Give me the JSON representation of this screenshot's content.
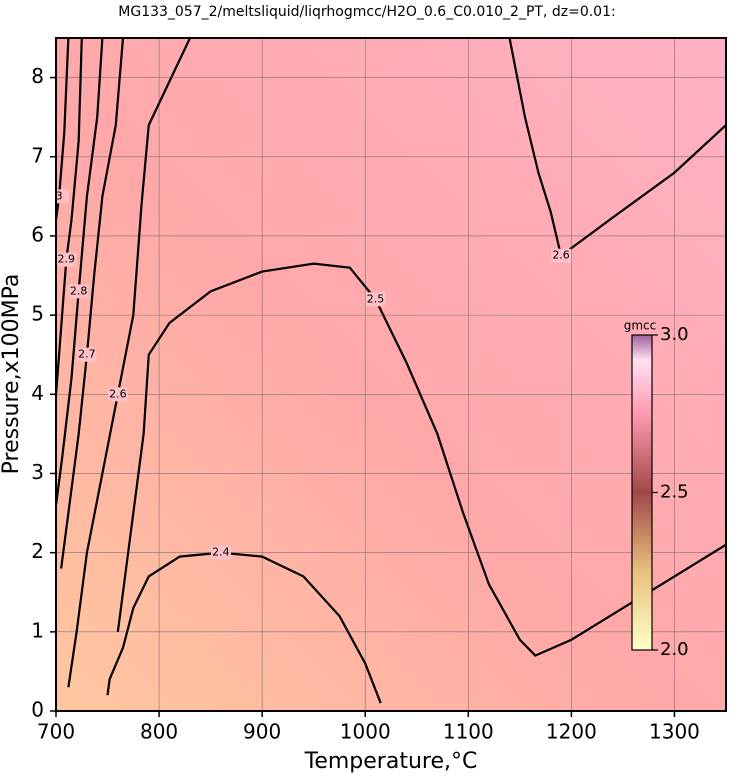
{
  "chart_data": {
    "type": "contour",
    "title": "MG133_057_2/meltsliquid/liqrhogmcc/H2O_0.6_C0.010_2_PT, dz=0.01:",
    "x_label": "Temperature,°C",
    "y_label": "Pressure,x100MPa",
    "xlim": [
      700,
      1350
    ],
    "ylim": [
      0,
      8.5
    ],
    "xticks": [
      700,
      800,
      900,
      1000,
      1100,
      1200,
      1300
    ],
    "yticks": [
      0,
      1,
      2,
      3,
      4,
      5,
      6,
      7,
      8
    ],
    "grid": true,
    "contours": [
      {
        "level": 2.4,
        "T": [
          750,
          752,
          765,
          775,
          790,
          820,
          860,
          900,
          940,
          975,
          1000,
          1015
        ],
        "P": [
          0.2,
          0.4,
          0.8,
          1.3,
          1.7,
          1.95,
          2.0,
          1.95,
          1.7,
          1.2,
          0.6,
          0.1
        ]
      },
      {
        "level": 2.5,
        "T": [
          760,
          768,
          778,
          785,
          790,
          810,
          850,
          900,
          950,
          985,
          1010,
          1040,
          1070,
          1095,
          1120,
          1150,
          1165,
          1200,
          1250,
          1300,
          1350
        ],
        "P": [
          1.0,
          1.8,
          2.8,
          3.5,
          4.5,
          4.9,
          5.3,
          5.55,
          5.65,
          5.6,
          5.2,
          4.4,
          3.5,
          2.5,
          1.6,
          0.9,
          0.7,
          0.9,
          1.3,
          1.7,
          2.1
        ]
      },
      {
        "level": 2.6,
        "T": [
          1140,
          1155,
          1168,
          1180,
          1190,
          1242,
          1300,
          1350
        ],
        "P": [
          8.5,
          7.5,
          6.8,
          6.3,
          5.75,
          6.25,
          6.8,
          7.4
        ]
      },
      {
        "level": 2.6,
        "T": [
          830,
          790,
          783,
          775,
          760,
          745,
          730,
          720,
          712
        ],
        "P": [
          8.5,
          7.4,
          6.4,
          5.0,
          4.0,
          3.0,
          2.0,
          1.0,
          0.3
        ]
      },
      {
        "level": 2.7,
        "T": [
          765,
          758,
          745,
          737,
          730,
          722,
          712,
          705
        ],
        "P": [
          8.5,
          7.4,
          6.5,
          5.5,
          4.5,
          3.5,
          2.5,
          1.8
        ]
      },
      {
        "level": 2.8,
        "T": [
          745,
          740,
          730,
          722,
          715,
          706,
          700
        ],
        "P": [
          8.5,
          7.5,
          6.5,
          5.3,
          4.2,
          3.2,
          2.6
        ]
      },
      {
        "level": 2.9,
        "T": [
          725,
          722,
          715,
          710,
          703,
          700
        ],
        "P": [
          8.5,
          7.2,
          6.2,
          5.7,
          4.5,
          4.0
        ]
      },
      {
        "level": 3,
        "T": [
          712,
          708,
          703,
          700
        ],
        "P": [
          8.5,
          7.3,
          6.5,
          6.2
        ]
      }
    ],
    "colorbar": {
      "label": "gmcc",
      "lim": [
        2.0,
        3.0
      ],
      "ticks": [
        {
          "value": 2.0,
          "label": "2.0"
        },
        {
          "value": 2.5,
          "label": "2.5"
        },
        {
          "value": 3.0,
          "label": "3.0"
        }
      ]
    }
  }
}
